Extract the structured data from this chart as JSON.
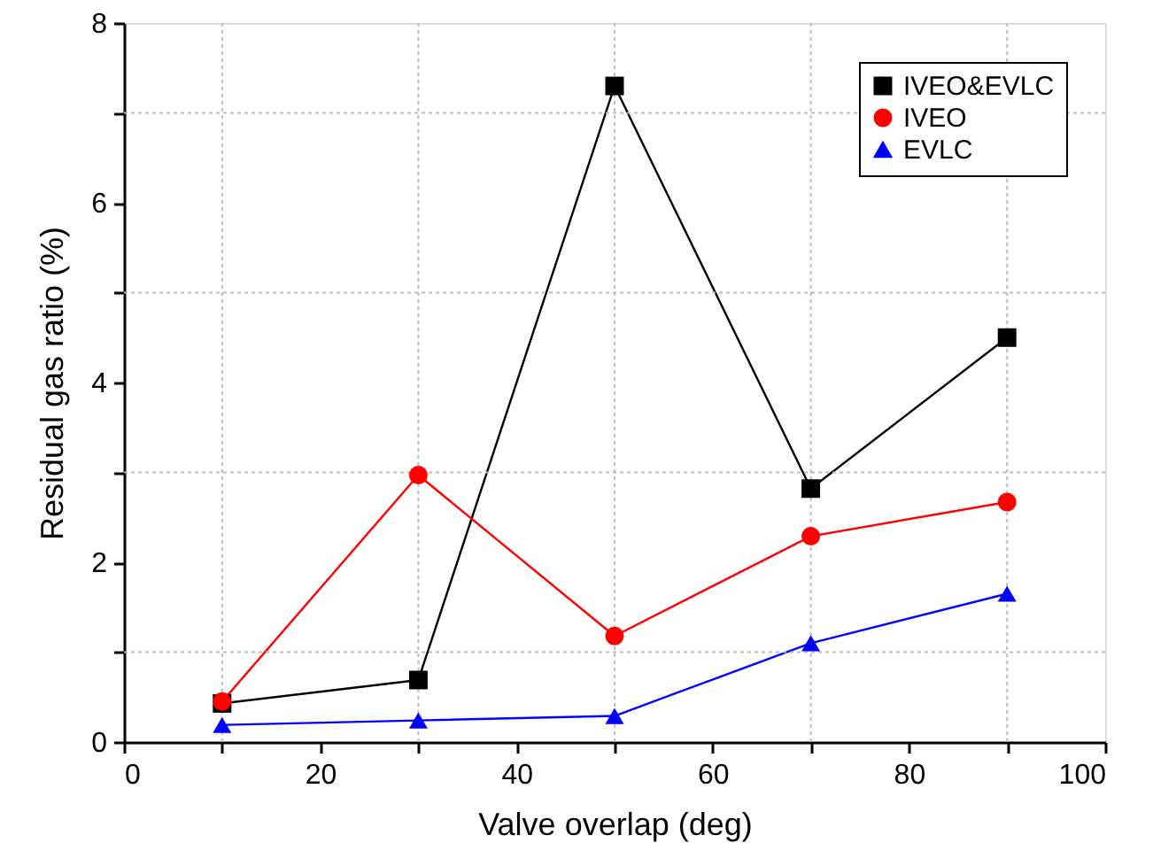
{
  "chart_data": {
    "type": "line",
    "xlabel": "Valve overlap (deg)",
    "ylabel": "Residual gas ratio (%)",
    "x": [
      10,
      30,
      50,
      70,
      90
    ],
    "xlim": [
      0,
      100
    ],
    "xticks": [
      0,
      {
        "value": 10,
        "label": null
      },
      20,
      {
        "value": 30,
        "label": null
      },
      40,
      {
        "value": 50,
        "label": null
      },
      60,
      {
        "value": 70,
        "label": null
      },
      80,
      {
        "value": 90,
        "label": null
      },
      100
    ],
    "ylim": [
      0,
      8
    ],
    "yticks": [
      0,
      {
        "value": 1,
        "label": null
      },
      2,
      {
        "value": 3,
        "label": null
      },
      4,
      {
        "value": 5,
        "label": null
      },
      6,
      {
        "value": 7,
        "label": null
      },
      8
    ],
    "grid": true,
    "legend": "top right",
    "line_style": "solid",
    "series": [
      {
        "name": "IVEO&EVLC",
        "color": "#000000",
        "marker": "square",
        "values": [
          0.43,
          0.69,
          7.3,
          2.82,
          4.5
        ]
      },
      {
        "name": "IVEO",
        "color": "#ff0000",
        "marker": "circle",
        "values": [
          0.45,
          2.97,
          1.18,
          2.29,
          2.67
        ]
      },
      {
        "name": "EVLC",
        "color": "#0000ff",
        "marker": "triangle",
        "values": [
          0.19,
          0.24,
          0.29,
          1.1,
          1.65
        ]
      }
    ]
  }
}
